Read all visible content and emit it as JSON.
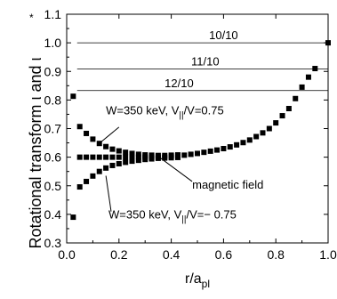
{
  "chart_data": {
    "type": "scatter",
    "xlabel": {
      "base": "r/a",
      "sub": "pl"
    },
    "ylabel": {
      "main": "Rotational transform ι and ι",
      "sup": "*"
    },
    "xlim": [
      0.0,
      1.0
    ],
    "ylim": [
      0.3,
      1.1
    ],
    "xticks": [
      "0.0",
      "0.2",
      "0.4",
      "0.6",
      "0.8",
      "1.0"
    ],
    "yticks": [
      "0.3",
      "0.4",
      "0.5",
      "0.6",
      "0.7",
      "0.8",
      "0.9",
      "1.0",
      "1.1"
    ],
    "grid": false,
    "resonances": [
      {
        "label": "10/10",
        "y": 1.0
      },
      {
        "label": "11/10",
        "y": 0.909
      },
      {
        "label": "12/10",
        "y": 0.833
      }
    ],
    "annotations": [
      {
        "id": "upper",
        "text": "W=350 keV, V",
        "sub": "||",
        "rest": "/V=0.75",
        "point": [
          0.13,
          0.652
        ]
      },
      {
        "id": "field",
        "text": "magnetic field",
        "point": [
          0.35,
          0.603
        ]
      },
      {
        "id": "lower",
        "text": "W=350 keV, V",
        "sub": "||",
        "rest": "/V=− 0.75",
        "point": [
          0.15,
          0.535
        ]
      }
    ],
    "series": [
      {
        "id": "magnetic-field",
        "x": [
          0.05,
          0.075,
          0.1,
          0.125,
          0.15,
          0.175,
          0.2,
          0.225,
          0.25,
          0.275,
          0.3,
          0.325,
          0.35,
          0.375,
          0.4,
          0.425,
          0.45,
          0.475,
          0.5,
          0.525,
          0.55,
          0.575,
          0.6,
          0.625,
          0.65,
          0.675,
          0.7,
          0.725,
          0.75,
          0.775,
          0.8,
          0.825,
          0.85,
          0.875,
          0.9,
          0.925,
          0.95,
          1.0
        ],
        "y": [
          0.6,
          0.6,
          0.6,
          0.6,
          0.6,
          0.6,
          0.6,
          0.6,
          0.6,
          0.6,
          0.6,
          0.6,
          0.6,
          0.6,
          0.603,
          0.605,
          0.607,
          0.61,
          0.613,
          0.617,
          0.621,
          0.625,
          0.63,
          0.636,
          0.643,
          0.651,
          0.66,
          0.672,
          0.685,
          0.7,
          0.72,
          0.745,
          0.77,
          0.805,
          0.845,
          0.88,
          0.91,
          1.0
        ]
      },
      {
        "id": "upper-branch",
        "x": [
          0.025,
          0.05,
          0.075,
          0.1,
          0.125,
          0.15,
          0.175,
          0.2,
          0.225,
          0.25,
          0.275,
          0.3,
          0.325,
          0.35,
          0.375,
          0.4,
          0.425
        ],
        "y": [
          0.813,
          0.707,
          0.683,
          0.663,
          0.648,
          0.637,
          0.628,
          0.622,
          0.617,
          0.613,
          0.61,
          0.608,
          0.607,
          0.606,
          0.606,
          0.607,
          0.608
        ]
      },
      {
        "id": "lower-branch",
        "x": [
          0.025,
          0.05,
          0.075,
          0.1,
          0.125,
          0.15,
          0.175,
          0.2,
          0.225,
          0.25,
          0.275,
          0.3,
          0.325,
          0.35,
          0.375,
          0.4,
          0.425
        ],
        "y": [
          0.39,
          0.496,
          0.515,
          0.534,
          0.55,
          0.562,
          0.571,
          0.577,
          0.582,
          0.586,
          0.589,
          0.592,
          0.594,
          0.596,
          0.597,
          0.598,
          0.599
        ]
      }
    ]
  }
}
